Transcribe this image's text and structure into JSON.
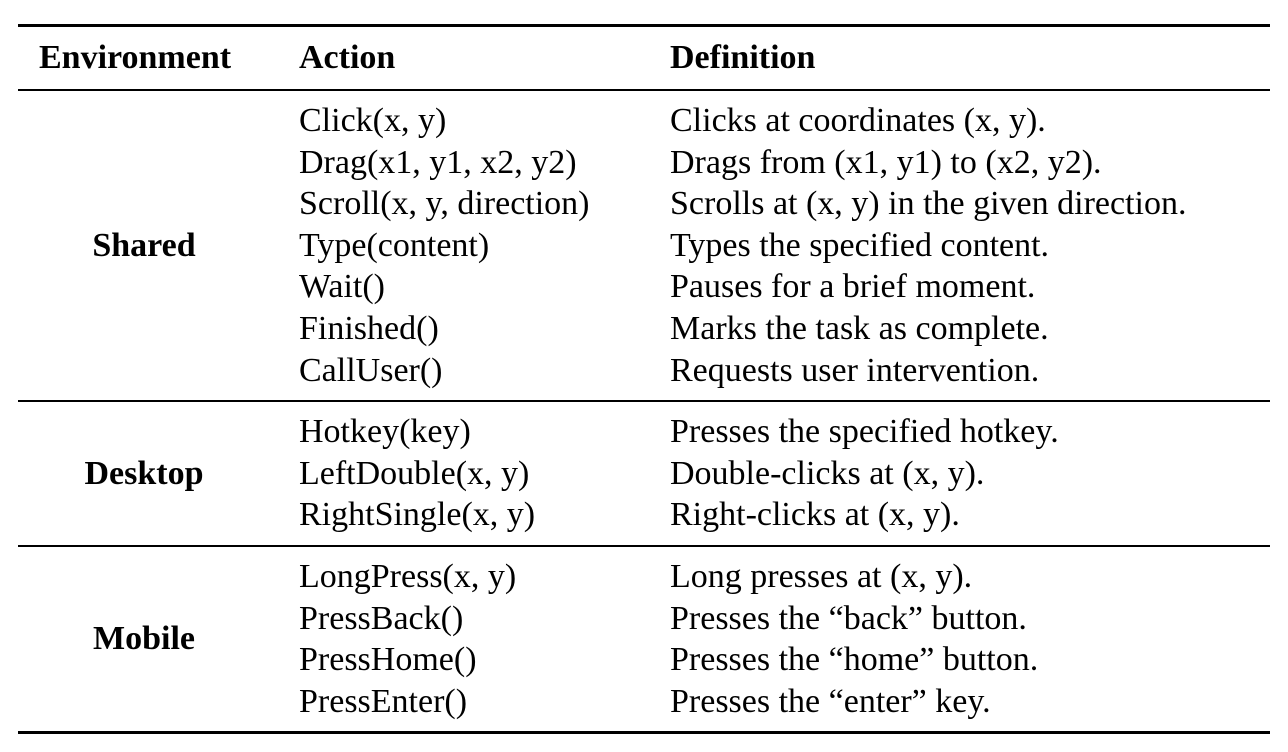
{
  "header": {
    "environment": "Environment",
    "action": "Action",
    "definition": "Definition"
  },
  "groups": [
    {
      "environment": "Shared",
      "rows": [
        {
          "action": "Click(x, y)",
          "definition": "Clicks at coordinates (x, y)."
        },
        {
          "action": "Drag(x1, y1, x2, y2)",
          "definition": "Drags from (x1, y1) to (x2, y2)."
        },
        {
          "action": "Scroll(x, y, direction)",
          "definition": "Scrolls at (x, y) in the given direction."
        },
        {
          "action": "Type(content)",
          "definition": "Types the specified content."
        },
        {
          "action": "Wait()",
          "definition": "Pauses for a brief moment."
        },
        {
          "action": "Finished()",
          "definition": "Marks the task as complete."
        },
        {
          "action": "CallUser()",
          "definition": "Requests user intervention."
        }
      ]
    },
    {
      "environment": "Desktop",
      "rows": [
        {
          "action": "Hotkey(key)",
          "definition": "Presses the specified hotkey."
        },
        {
          "action": "LeftDouble(x, y)",
          "definition": "Double-clicks at (x, y)."
        },
        {
          "action": "RightSingle(x, y)",
          "definition": "Right-clicks at (x, y)."
        }
      ]
    },
    {
      "environment": "Mobile",
      "rows": [
        {
          "action": "LongPress(x, y)",
          "definition": "Long presses at (x, y)."
        },
        {
          "action": "PressBack()",
          "definition": "Presses the “back” button."
        },
        {
          "action": "PressHome()",
          "definition": "Presses the “home” button."
        },
        {
          "action": "PressEnter()",
          "definition": "Presses the “enter” key."
        }
      ]
    }
  ]
}
